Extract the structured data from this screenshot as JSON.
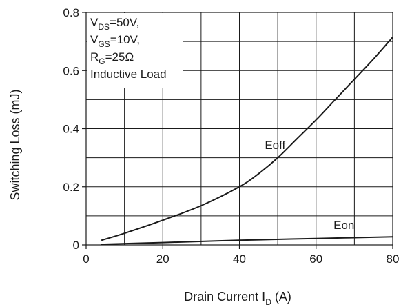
{
  "chart_data": {
    "type": "line",
    "xlabel": {
      "main": "Drain Current I",
      "sub": "D",
      "tail": " (A)"
    },
    "ylabel": "Switching Loss (mJ)",
    "xlim": [
      0,
      80
    ],
    "ylim": [
      0,
      0.8
    ],
    "xticks": [
      0,
      20,
      40,
      60,
      80
    ],
    "yticks": [
      0,
      0.2,
      0.4,
      0.6,
      0.8
    ],
    "xtick_labels": [
      "0",
      "20",
      "40",
      "60",
      "80"
    ],
    "ytick_labels": [
      "0",
      "0.2",
      "0.4",
      "0.6",
      "0.8"
    ],
    "grid": true,
    "legend": "none",
    "conditions": [
      {
        "main": "V",
        "sub": "DS",
        "tail": "=50V,"
      },
      {
        "main": "V",
        "sub": "GS",
        "tail": "=10V,"
      },
      {
        "main": "R",
        "sub": "G",
        "tail": "=25Ω"
      },
      {
        "main": "Inductive Load",
        "sub": "",
        "tail": ""
      }
    ],
    "series": [
      {
        "name": "Eoff",
        "x": [
          4,
          10,
          20,
          30,
          40,
          45,
          50,
          55,
          60,
          65,
          70,
          75,
          80
        ],
        "y": [
          0.016,
          0.04,
          0.085,
          0.135,
          0.2,
          0.245,
          0.3,
          0.365,
          0.43,
          0.5,
          0.57,
          0.64,
          0.715
        ]
      },
      {
        "name": "Eon",
        "x": [
          4,
          20,
          40,
          60,
          80
        ],
        "y": [
          0.002,
          0.008,
          0.016,
          0.022,
          0.028
        ]
      }
    ],
    "color": "#1a1a1a"
  }
}
